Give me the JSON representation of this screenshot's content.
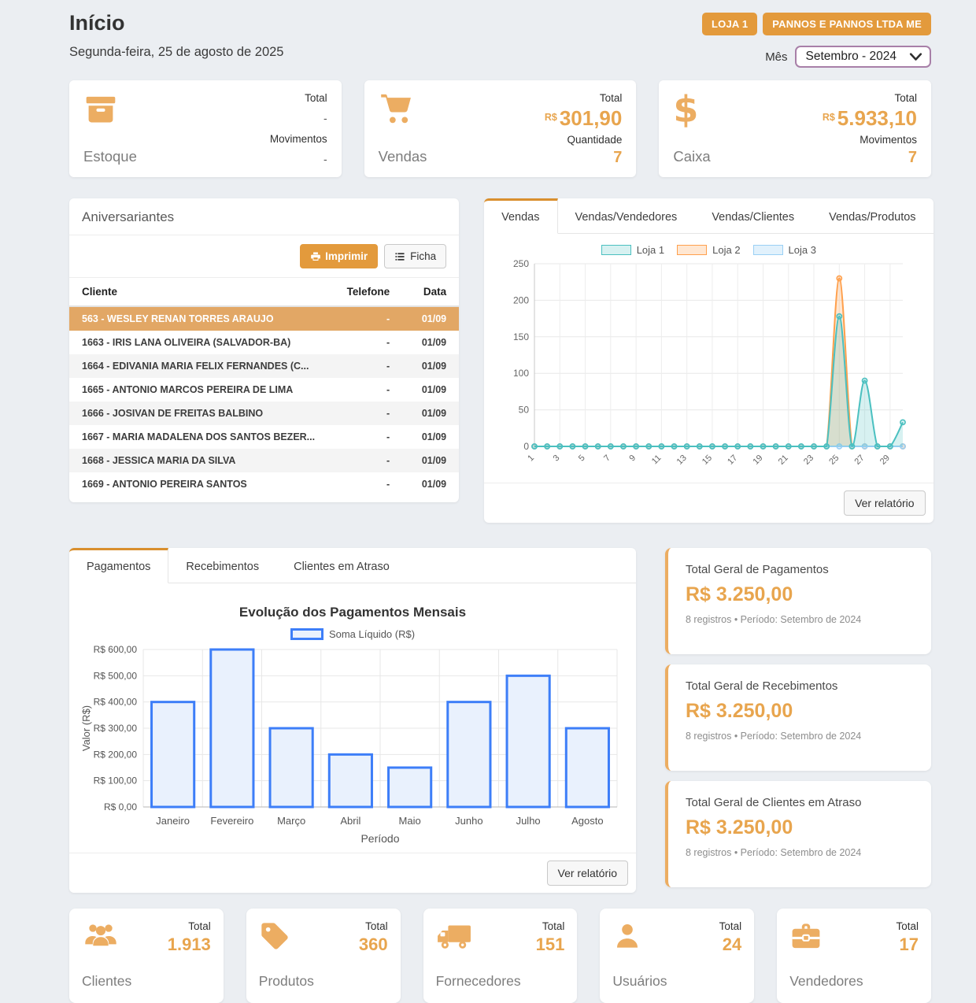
{
  "header": {
    "title": "Início",
    "date": "Segunda-feira, 25 de agosto de 2025",
    "badges": [
      "LOJA 1",
      "PANNOS E PANNOS LTDA ME"
    ],
    "month_label": "Mês",
    "month_value": "Setembro - 2024"
  },
  "stock_card": {
    "label": "Estoque",
    "total_label": "Total",
    "total_value": "-",
    "moves_label": "Movimentos",
    "moves_value": "-"
  },
  "sales_card": {
    "label": "Vendas",
    "total_label": "Total",
    "currency": "R$",
    "total_value": "301,90",
    "qty_label": "Quantidade",
    "qty_value": "7"
  },
  "cash_card": {
    "label": "Caixa",
    "total_label": "Total",
    "currency": "R$",
    "total_value": "5.933,10",
    "moves_label": "Movimentos",
    "moves_value": "7"
  },
  "birthdays": {
    "title": "Aniversariantes",
    "print_button": "Imprimir",
    "ficha_button": "Ficha",
    "columns": [
      "Cliente",
      "Telefone",
      "Data"
    ],
    "rows": [
      {
        "client": "563 - WESLEY RENAN TORRES ARAUJO",
        "phone": "-",
        "date": "01/09",
        "selected": true
      },
      {
        "client": "1663 - IRIS LANA OLIVEIRA (SALVADOR-BA)",
        "phone": "-",
        "date": "01/09"
      },
      {
        "client": "1664 - EDIVANIA MARIA FELIX FERNANDES (C...",
        "phone": "-",
        "date": "01/09"
      },
      {
        "client": "1665 - ANTONIO MARCOS PEREIRA DE LIMA",
        "phone": "-",
        "date": "01/09"
      },
      {
        "client": "1666 - JOSIVAN DE FREITAS BALBINO",
        "phone": "-",
        "date": "01/09"
      },
      {
        "client": "1667 - MARIA MADALENA DOS SANTOS BEZER...",
        "phone": "-",
        "date": "01/09"
      },
      {
        "client": "1668 - JESSICA MARIA DA SILVA",
        "phone": "-",
        "date": "01/09"
      },
      {
        "client": "1669 - ANTONIO PEREIRA SANTOS",
        "phone": "-",
        "date": "01/09"
      }
    ]
  },
  "sales_panel": {
    "tabs": [
      "Vendas",
      "Vendas/Vendedores",
      "Vendas/Clientes",
      "Vendas/Produtos"
    ],
    "active_tab": 0,
    "report_button": "Ver relatório"
  },
  "payments_panel": {
    "tabs": [
      "Pagamentos",
      "Recebimentos",
      "Clientes em Atraso"
    ],
    "active_tab": 0,
    "report_button": "Ver relatório"
  },
  "total_cards": [
    {
      "title": "Total Geral de Pagamentos",
      "value": "R$ 3.250,00",
      "subtitle": "8 registros • Período: Setembro de 2024"
    },
    {
      "title": "Total Geral de Recebimentos",
      "value": "R$ 3.250,00",
      "subtitle": "8 registros • Período: Setembro de 2024"
    },
    {
      "title": "Total Geral de Clientes em Atraso",
      "value": "R$ 3.250,00",
      "subtitle": "8 registros • Período: Setembro de 2024"
    }
  ],
  "bottom_cards": [
    {
      "label": "Clientes",
      "total_label": "Total",
      "value": "1.913"
    },
    {
      "label": "Produtos",
      "total_label": "Total",
      "value": "360"
    },
    {
      "label": "Fornecedores",
      "total_label": "Total",
      "value": "151"
    },
    {
      "label": "Usuários",
      "total_label": "Total",
      "value": "24"
    },
    {
      "label": "Vendedores",
      "total_label": "Total",
      "value": "17"
    }
  ],
  "colors": {
    "accent_orange": "#e39a3c",
    "row_highlight": "#e2a765",
    "number_orange": "#e8a54e",
    "select_border": "#a87fa8"
  },
  "chart_data": [
    {
      "id": "vendas-por-dia",
      "type": "line",
      "title": "",
      "x_range": [
        1,
        30
      ],
      "x_ticks": [
        "1",
        "3",
        "5",
        "7",
        "9",
        "11",
        "13",
        "15",
        "17",
        "19",
        "21",
        "23",
        "25",
        "27",
        "29"
      ],
      "x_tick_every": 2,
      "ylim": [
        0,
        250
      ],
      "yticks": [
        0,
        50,
        100,
        150,
        200,
        250
      ],
      "grid": true,
      "legend_position": "top",
      "series": [
        {
          "name": "Loja 1",
          "color": "#4bc0c0",
          "fill": "rgba(75,192,192,0.22)",
          "values": [
            0,
            0,
            0,
            0,
            0,
            0,
            0,
            0,
            0,
            0,
            0,
            0,
            0,
            0,
            0,
            0,
            0,
            0,
            0,
            0,
            0,
            0,
            0,
            0,
            178,
            0,
            90,
            0,
            0,
            33
          ]
        },
        {
          "name": "Loja 2",
          "color": "#ffa04d",
          "fill": "rgba(255,160,77,0.25)",
          "values": [
            0,
            0,
            0,
            0,
            0,
            0,
            0,
            0,
            0,
            0,
            0,
            0,
            0,
            0,
            0,
            0,
            0,
            0,
            0,
            0,
            0,
            0,
            0,
            0,
            230,
            0,
            0,
            0,
            0,
            0
          ]
        },
        {
          "name": "Loja 3",
          "color": "#9ad0f5",
          "fill": "rgba(154,208,245,0.30)",
          "values": [
            0,
            0,
            0,
            0,
            0,
            0,
            0,
            0,
            0,
            0,
            0,
            0,
            0,
            0,
            0,
            0,
            0,
            0,
            0,
            0,
            0,
            0,
            0,
            0,
            0,
            0,
            0,
            0,
            0,
            0
          ]
        }
      ]
    },
    {
      "id": "pagamentos-mensais",
      "type": "bar",
      "title": "Evolução dos Pagamentos Mensais",
      "legend": [
        "Soma Líquido (R$)"
      ],
      "categories": [
        "Janeiro",
        "Fevereiro",
        "Março",
        "Abril",
        "Maio",
        "Junho",
        "Julho",
        "Agosto"
      ],
      "values": [
        400,
        600,
        300,
        200,
        150,
        400,
        500,
        300
      ],
      "xlabel": "Período",
      "ylabel": "Valor (R$)",
      "ylim": [
        0,
        600
      ],
      "yticks": [
        0,
        100,
        200,
        300,
        400,
        500,
        600
      ],
      "ytick_labels": [
        "R$ 0,00",
        "R$ 100,00",
        "R$ 200,00",
        "R$ 300,00",
        "R$ 400,00",
        "R$ 500,00",
        "R$ 600,00"
      ],
      "bar_fill": "#e9f1fd",
      "bar_border": "#3d7ef8",
      "grid": true
    }
  ]
}
